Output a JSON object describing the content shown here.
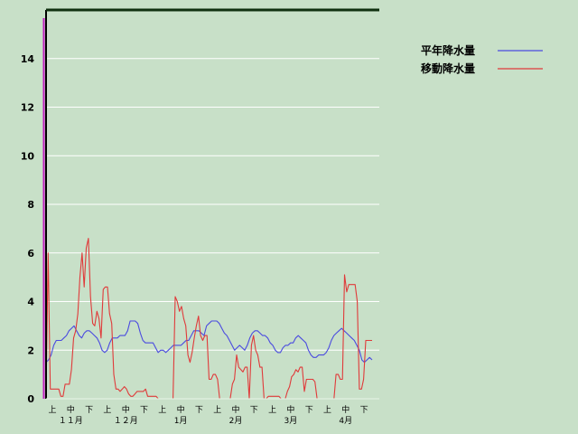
{
  "chart_data": {
    "type": "line",
    "title": "",
    "xlabel": "",
    "ylabel": "",
    "ylim": [
      0,
      16
    ],
    "y_ticks": [
      0,
      2,
      4,
      6,
      8,
      10,
      12,
      14
    ],
    "grid": true,
    "legend_position": "top-right",
    "dekad_labels": [
      "上",
      "中",
      "下"
    ],
    "months": [
      "１１月",
      "１２月",
      "1月",
      "2月",
      "3月",
      "4月"
    ],
    "series": [
      {
        "name": "平年降水量",
        "color": "#4a4ae0",
        "values": [
          1.5,
          1.6,
          1.8,
          2.2,
          2.4,
          2.4,
          2.4,
          2.5,
          2.6,
          2.8,
          2.9,
          3.0,
          2.8,
          2.6,
          2.5,
          2.7,
          2.8,
          2.8,
          2.7,
          2.6,
          2.5,
          2.3,
          2.0,
          1.9,
          2.0,
          2.3,
          2.5,
          2.5,
          2.5,
          2.6,
          2.6,
          2.6,
          2.8,
          3.2,
          3.2,
          3.2,
          3.1,
          2.7,
          2.4,
          2.3,
          2.3,
          2.3,
          2.3,
          2.1,
          1.9,
          2.0,
          2.0,
          1.9,
          2.0,
          2.1,
          2.2,
          2.2,
          2.2,
          2.2,
          2.3,
          2.4,
          2.4,
          2.6,
          2.8,
          2.8,
          2.8,
          2.7,
          2.6,
          3.0,
          3.1,
          3.2,
          3.2,
          3.2,
          3.1,
          2.9,
          2.7,
          2.6,
          2.4,
          2.2,
          2.0,
          2.1,
          2.2,
          2.1,
          2.0,
          2.2,
          2.5,
          2.7,
          2.8,
          2.8,
          2.7,
          2.6,
          2.6,
          2.5,
          2.3,
          2.2,
          2.0,
          1.9,
          1.9,
          2.1,
          2.2,
          2.2,
          2.3,
          2.3,
          2.5,
          2.6,
          2.5,
          2.4,
          2.3,
          2.0,
          1.8,
          1.7,
          1.7,
          1.8,
          1.8,
          1.8,
          1.9,
          2.1,
          2.4,
          2.6,
          2.7,
          2.8,
          2.9,
          2.8,
          2.7,
          2.6,
          2.5,
          2.4,
          2.2,
          2.0,
          1.6,
          1.5,
          1.6,
          1.7,
          1.6
        ]
      },
      {
        "name": "移動降水量",
        "color": "#e03a3a",
        "values": [
          0.2,
          6.0,
          0.4,
          0.4,
          0.4,
          0.4,
          0.4,
          0.1,
          0.1,
          0.6,
          0.6,
          0.6,
          1.2,
          2.5,
          2.8,
          3.5,
          5.0,
          6.0,
          4.6,
          6.2,
          6.6,
          4.2,
          3.1,
          3.0,
          3.6,
          3.3,
          2.5,
          4.5,
          4.6,
          4.6,
          3.5,
          3.1,
          1.0,
          0.4,
          0.4,
          0.3,
          0.4,
          0.5,
          0.4,
          0.2,
          0.1,
          0.1,
          0.2,
          0.3,
          0.3,
          0.3,
          0.3,
          0.4,
          0.1,
          0.1,
          0.1,
          0.1,
          0.1,
          0.0,
          0.0,
          0.0,
          0.0,
          0.0,
          0.0,
          0.0,
          0.0,
          4.2,
          4.0,
          3.6,
          3.8,
          3.3,
          3.0,
          1.8,
          1.5,
          1.9,
          2.5,
          3.0,
          3.4,
          2.6,
          2.4,
          2.6,
          2.6,
          0.8,
          0.8,
          1.0,
          1.0,
          0.8,
          0.0,
          0.0,
          0.0,
          0.0,
          0.0,
          0.0,
          0.6,
          0.8,
          1.8,
          1.3,
          1.2,
          1.1,
          1.3,
          1.3,
          0.0,
          2.2,
          2.6,
          2.0,
          1.8,
          1.3,
          1.3,
          0.0,
          0.0,
          0.1,
          0.1,
          0.1,
          0.1,
          0.1,
          0.1,
          0.0,
          0.0,
          0.0,
          0.3,
          0.5,
          0.9,
          1.0,
          1.2,
          1.1,
          1.3,
          1.3,
          0.3,
          0.8,
          0.8,
          0.8,
          0.8,
          0.7,
          0.0,
          0.0,
          0.0,
          0.0,
          0.0,
          0.0,
          0.0,
          0.0,
          0.0,
          1.0,
          1.0,
          0.8,
          0.8,
          5.1,
          4.4,
          4.7,
          4.7,
          4.7,
          4.7,
          4.0,
          0.4,
          0.4,
          0.8,
          2.4,
          2.4,
          2.4,
          2.4
        ]
      }
    ]
  }
}
